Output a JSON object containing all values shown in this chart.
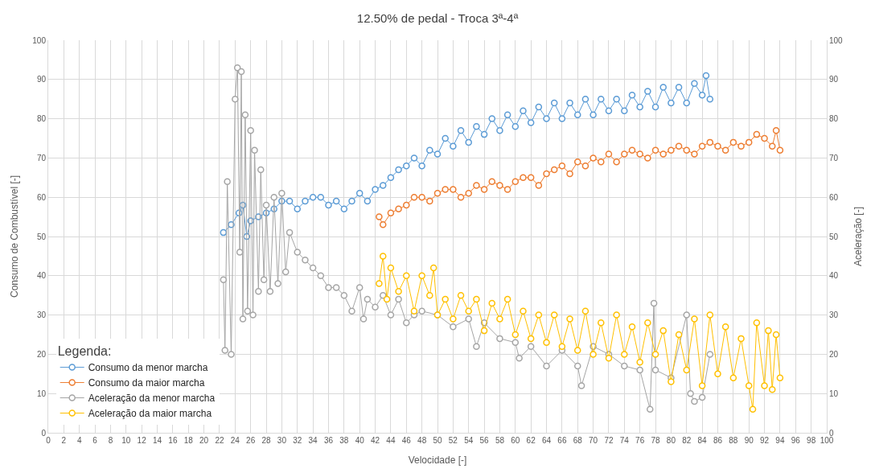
{
  "chart_data": {
    "type": "line",
    "title": "12.50% de pedal - Troca 3ª-4ª",
    "xlabel": "Velocidade [-]",
    "ylabel": "Consumo de Combustível [-]",
    "y2label": "Aceleração [-]",
    "legend_title": "Legenda:",
    "xlim": [
      0,
      100
    ],
    "xticks": [
      0,
      2,
      4,
      6,
      8,
      10,
      12,
      14,
      16,
      18,
      20,
      22,
      24,
      26,
      28,
      30,
      32,
      34,
      36,
      38,
      40,
      42,
      44,
      46,
      48,
      50,
      52,
      54,
      56,
      58,
      60,
      62,
      64,
      66,
      68,
      70,
      72,
      74,
      76,
      78,
      80,
      82,
      84,
      86,
      88,
      90,
      92,
      94,
      96,
      98,
      100
    ],
    "ylim": [
      0,
      100
    ],
    "yticks": [
      0,
      10,
      20,
      30,
      40,
      50,
      60,
      70,
      80,
      90,
      100
    ],
    "y2lim": [
      0,
      100
    ],
    "y2ticks": [
      0,
      10,
      20,
      30,
      40,
      50,
      60,
      70,
      80,
      90,
      100
    ],
    "grid": true,
    "legend": "bottom left",
    "marker": "circle",
    "line_style": "solid",
    "series": [
      {
        "name": "Consumo da menor marcha",
        "color": "#5b9bd5",
        "x": [
          22.5,
          23.5,
          24.5,
          25,
          25.5,
          26,
          27,
          28,
          29,
          30,
          31,
          32,
          33,
          34,
          35,
          36,
          37,
          38,
          39,
          40,
          41,
          42,
          43,
          44,
          45,
          46,
          47,
          48,
          49,
          50,
          51,
          52,
          53,
          54,
          55,
          56,
          57,
          58,
          59,
          60,
          61,
          62,
          63,
          64,
          65,
          66,
          67,
          68,
          69,
          70,
          71,
          72,
          73,
          74,
          75,
          76,
          77,
          78,
          79,
          80,
          81,
          82,
          83,
          84,
          84.5,
          85
        ],
        "values": [
          51,
          53,
          56,
          58,
          50,
          54,
          55,
          56,
          57,
          59,
          59,
          57,
          59,
          60,
          60,
          58,
          59,
          57,
          59,
          61,
          59,
          62,
          63,
          65,
          67,
          68,
          70,
          68,
          72,
          71,
          75,
          73,
          77,
          74,
          78,
          76,
          80,
          77,
          81,
          78,
          82,
          79,
          83,
          80,
          84,
          80,
          84,
          81,
          85,
          81,
          85,
          82,
          85,
          82,
          86,
          83,
          87,
          83,
          88,
          84,
          88,
          84,
          89,
          86,
          91,
          85
        ]
      },
      {
        "name": "Consumo da maior marcha",
        "color": "#ed7d31",
        "x": [
          42.5,
          43,
          44,
          45,
          46,
          47,
          48,
          49,
          50,
          51,
          52,
          53,
          54,
          55,
          56,
          57,
          58,
          59,
          60,
          61,
          62,
          63,
          64,
          65,
          66,
          67,
          68,
          69,
          70,
          71,
          72,
          73,
          74,
          75,
          76,
          77,
          78,
          79,
          80,
          81,
          82,
          83,
          84,
          85,
          86,
          87,
          88,
          89,
          90,
          91,
          92,
          93,
          93.5,
          94
        ],
        "values": [
          55,
          53,
          56,
          57,
          58,
          60,
          60,
          59,
          61,
          62,
          62,
          60,
          61,
          63,
          62,
          64,
          63,
          62,
          64,
          65,
          65,
          63,
          66,
          67,
          68,
          66,
          69,
          68,
          70,
          69,
          71,
          69,
          71,
          72,
          71,
          70,
          72,
          71,
          72,
          73,
          72,
          71,
          73,
          74,
          73,
          72,
          74,
          73,
          74,
          76,
          75,
          73,
          77,
          72
        ]
      },
      {
        "name": "Aceleração da menor marcha",
        "color": "#a5a5a5",
        "axis": "y2",
        "x": [
          22.5,
          22.7,
          23,
          23.5,
          24,
          24.3,
          24.6,
          24.8,
          25,
          25.3,
          25.6,
          26,
          26.3,
          26.5,
          27,
          27.3,
          27.7,
          28,
          28.5,
          29,
          29.5,
          30,
          30.5,
          31,
          32,
          33,
          34,
          35,
          36,
          37,
          38,
          39,
          40,
          40.5,
          41,
          42,
          43,
          44,
          45,
          46,
          47,
          48,
          50,
          52,
          54,
          55,
          56,
          58,
          60,
          60.5,
          62,
          64,
          66,
          68,
          68.5,
          70,
          72,
          74,
          76,
          77.3,
          77.8,
          78,
          80,
          82,
          82.5,
          83,
          84,
          85
        ],
        "values": [
          39,
          21,
          64,
          20,
          85,
          93,
          46,
          92,
          29,
          81,
          31,
          77,
          30,
          72,
          36,
          67,
          39,
          58,
          36,
          60,
          38,
          61,
          41,
          51,
          46,
          44,
          42,
          40,
          37,
          37,
          35,
          31,
          37,
          29,
          34,
          32,
          35,
          30,
          34,
          28,
          30,
          31,
          30,
          27,
          29,
          22,
          28,
          24,
          23,
          19,
          22,
          17,
          21,
          17,
          12,
          22,
          20,
          17,
          16,
          6,
          33,
          16,
          14,
          30,
          10,
          8,
          9,
          20
        ]
      },
      {
        "name": "Aceleração da maior marcha",
        "color": "#ffc000",
        "axis": "y2",
        "x": [
          42.5,
          43,
          43.5,
          44,
          45,
          46,
          47,
          48,
          49,
          49.5,
          50,
          51,
          52,
          53,
          54,
          55,
          56,
          57,
          58,
          59,
          60,
          61,
          62,
          63,
          64,
          65,
          66,
          67,
          68,
          69,
          70,
          71,
          72,
          73,
          74,
          75,
          76,
          77,
          78,
          79,
          80,
          81,
          82,
          83,
          84,
          85,
          86,
          87,
          88,
          89,
          90,
          90.5,
          91,
          92,
          92.5,
          93,
          93.5,
          94
        ],
        "values": [
          38,
          45,
          34,
          42,
          36,
          40,
          31,
          40,
          35,
          42,
          30,
          34,
          29,
          35,
          31,
          34,
          26,
          33,
          29,
          34,
          25,
          31,
          24,
          30,
          23,
          30,
          22,
          29,
          21,
          31,
          20,
          28,
          19,
          30,
          20,
          27,
          18,
          28,
          20,
          26,
          13,
          25,
          16,
          29,
          12,
          30,
          15,
          27,
          14,
          24,
          12,
          6,
          28,
          12,
          26,
          11,
          25,
          14
        ]
      }
    ]
  }
}
